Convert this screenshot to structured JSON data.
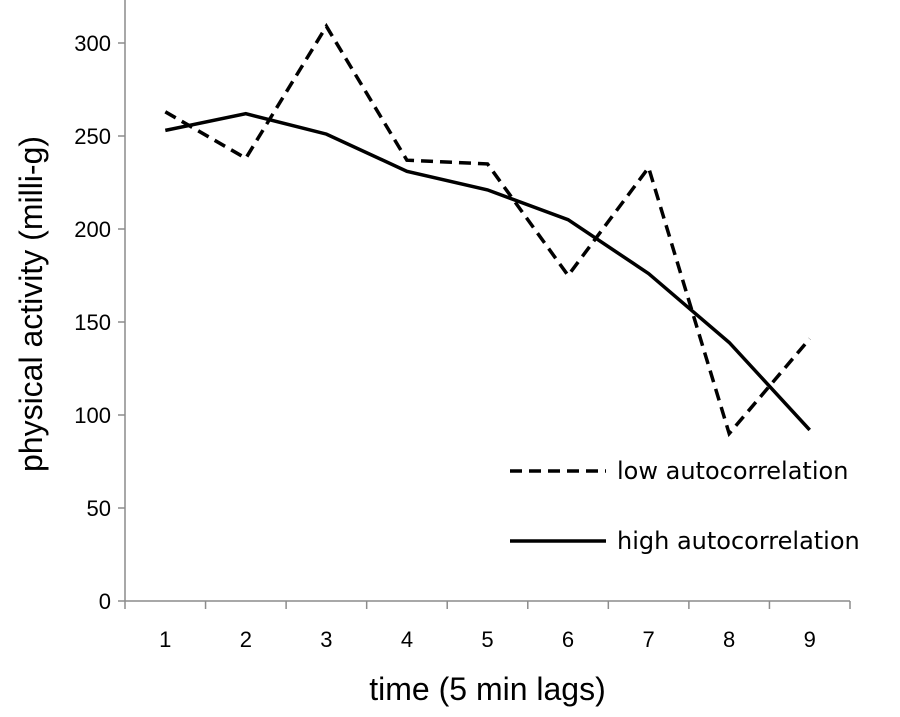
{
  "chart_data": {
    "type": "line",
    "xlabel": "time (5 min lags)",
    "ylabel": "physical activity (milli-g)",
    "x": [
      1,
      2,
      3,
      4,
      5,
      6,
      7,
      8,
      9
    ],
    "x_tick_labels": [
      "1",
      "2",
      "3",
      "4",
      "5",
      "6",
      "7",
      "8",
      "9"
    ],
    "ylim": [
      0,
      350
    ],
    "y_ticks": [
      0,
      50,
      100,
      150,
      200,
      250,
      300
    ],
    "y_tick_labels": [
      "0",
      "50",
      "100",
      "150",
      "200",
      "250",
      "300"
    ],
    "grid": false,
    "legend_position": "bottom-right",
    "series": [
      {
        "name": "low autocorrelation",
        "style": "dashed",
        "color": "#000000",
        "values": [
          263,
          238,
          309,
          237,
          235,
          175,
          233,
          90,
          141
        ]
      },
      {
        "name": "high autocorrelation",
        "style": "solid",
        "color": "#000000",
        "values": [
          253,
          262,
          251,
          231,
          221,
          205,
          176,
          139,
          92
        ]
      }
    ]
  }
}
